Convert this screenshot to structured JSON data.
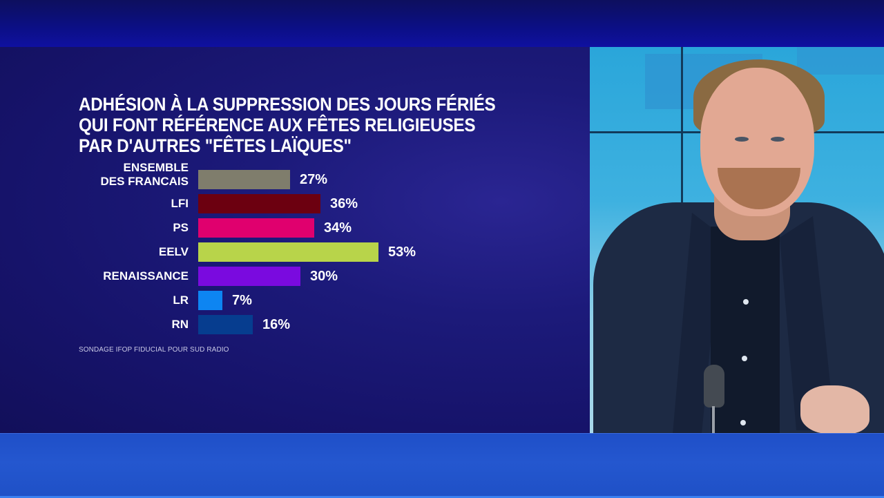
{
  "chart_data": {
    "type": "bar",
    "orientation": "horizontal",
    "title": "ADHÉSION À LA SUPPRESSION DES JOURS FÉRIÉS QUI FONT RÉFÉRENCE AUX FÊTES RELIGIEUSES PAR D'AUTRES \"FÊTES LAÏQUES\"",
    "title_lines": [
      "ADHÉSION À LA SUPPRESSION DES JOURS FÉRIÉS",
      "QUI FONT RÉFÉRENCE AUX FÊTES RELIGIEUSES",
      "PAR D'AUTRES \"FÊTES LAÏQUES\""
    ],
    "categories": [
      "ENSEMBLE DES FRANCAIS",
      "LFI",
      "PS",
      "EELV",
      "RENAISSANCE",
      "LR",
      "RN"
    ],
    "values": [
      27,
      36,
      34,
      53,
      30,
      7,
      16
    ],
    "value_labels": [
      "27%",
      "36%",
      "34%",
      "53%",
      "30%",
      "7%",
      "16%"
    ],
    "colors": [
      "#7f7d6c",
      "#6c0010",
      "#e0006e",
      "#b8d44a",
      "#7a0adf",
      "#0d85f2",
      "#063d8f"
    ],
    "unit": "%",
    "xlabel": "",
    "ylabel": "",
    "grid": false,
    "legend": null,
    "source": "SONDAGE IFOP FIDUCIAL POUR SUD RADIO"
  },
  "rows": [
    {
      "label_lines": [
        "ENSEMBLE",
        "DES FRANCAIS"
      ],
      "value": "27%",
      "pct": 27,
      "color": "#7f7d6c"
    },
    {
      "label_lines": [
        "LFI"
      ],
      "value": "36%",
      "pct": 36,
      "color": "#6c0010"
    },
    {
      "label_lines": [
        "PS"
      ],
      "value": "34%",
      "pct": 34,
      "color": "#e0006e"
    },
    {
      "label_lines": [
        "EELV"
      ],
      "value": "53%",
      "pct": 53,
      "color": "#b8d44a"
    },
    {
      "label_lines": [
        "RENAISSANCE"
      ],
      "value": "30%",
      "pct": 30,
      "color": "#7a0adf"
    },
    {
      "label_lines": [
        "LR"
      ],
      "value": "7%",
      "pct": 7,
      "color": "#0d85f2"
    },
    {
      "label_lines": [
        "RN"
      ],
      "value": "16%",
      "pct": 16,
      "color": "#063d8f"
    }
  ],
  "colors": {
    "background": "#16136a",
    "top_band": "#0c0f86",
    "bottom_band": "#2457cf",
    "text": "#ffffff"
  }
}
